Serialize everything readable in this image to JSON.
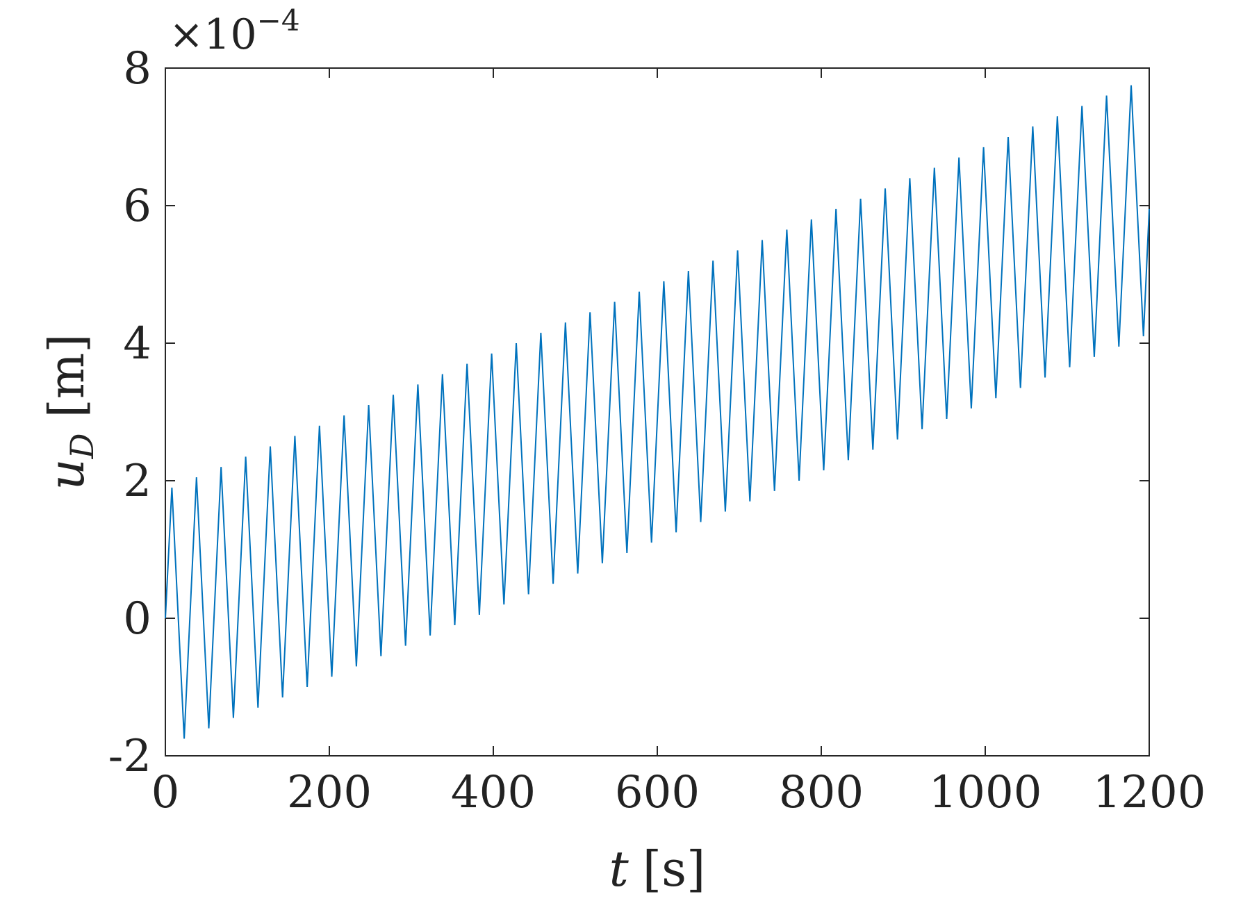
{
  "chart_data": {
    "type": "line",
    "title": "",
    "xlabel": {
      "var": "t",
      "unit": "[s]"
    },
    "ylabel": {
      "var": "u",
      "sub": "D",
      "unit": "[m]"
    },
    "xlim": [
      0,
      1200
    ],
    "ylim": [
      -2,
      8
    ],
    "y_multiplier": {
      "base": "×10",
      "exp": "−4"
    },
    "xticks": [
      0,
      200,
      400,
      600,
      800,
      1000,
      1200
    ],
    "yticks": [
      -2,
      0,
      2,
      4,
      6,
      8
    ],
    "xtick_labels": [
      "0",
      "200",
      "400",
      "600",
      "800",
      "1000",
      "1200"
    ],
    "ytick_labels": [
      "-2",
      "0",
      "2",
      "4",
      "6",
      "8"
    ],
    "grid": false,
    "box": true,
    "series": [
      {
        "color": "#0072bd",
        "x": [
          0,
          8,
          23,
          38,
          53,
          68,
          83,
          98,
          113,
          128,
          143,
          158,
          173,
          188,
          203,
          218,
          233,
          248,
          263,
          278,
          293,
          308,
          323,
          338,
          353,
          368,
          383,
          398,
          413,
          428,
          443,
          458,
          473,
          488,
          503,
          518,
          533,
          548,
          563,
          578,
          593,
          608,
          623,
          638,
          653,
          668,
          683,
          698,
          713,
          728,
          743,
          758,
          773,
          788,
          803,
          818,
          833,
          848,
          863,
          878,
          893,
          908,
          923,
          938,
          953,
          968,
          983,
          998,
          1013,
          1028,
          1043,
          1058,
          1073,
          1088,
          1103,
          1118,
          1133,
          1148,
          1163,
          1178,
          1193,
          1200
        ],
        "y": [
          0,
          1.9,
          -1.75,
          2.05,
          -1.6,
          2.2,
          -1.45,
          2.35,
          -1.3,
          2.5,
          -1.15,
          2.65,
          -1.0,
          2.8,
          -0.85,
          2.95,
          -0.7,
          3.1,
          -0.55,
          3.25,
          -0.4,
          3.4,
          -0.25,
          3.55,
          -0.1,
          3.7,
          0.05,
          3.85,
          0.2,
          4.0,
          0.35,
          4.15,
          0.5,
          4.3,
          0.65,
          4.45,
          0.8,
          4.6,
          0.95,
          4.75,
          1.1,
          4.9,
          1.25,
          5.05,
          1.4,
          5.2,
          1.55,
          5.35,
          1.7,
          5.5,
          1.85,
          5.65,
          2.0,
          5.8,
          2.15,
          5.95,
          2.3,
          6.1,
          2.45,
          6.25,
          2.6,
          6.4,
          2.75,
          6.55,
          2.9,
          6.7,
          3.05,
          6.85,
          3.2,
          7.0,
          3.35,
          7.15,
          3.5,
          7.3,
          3.65,
          7.45,
          3.8,
          7.6,
          3.95,
          7.75,
          4.1,
          5.95
        ]
      }
    ]
  }
}
